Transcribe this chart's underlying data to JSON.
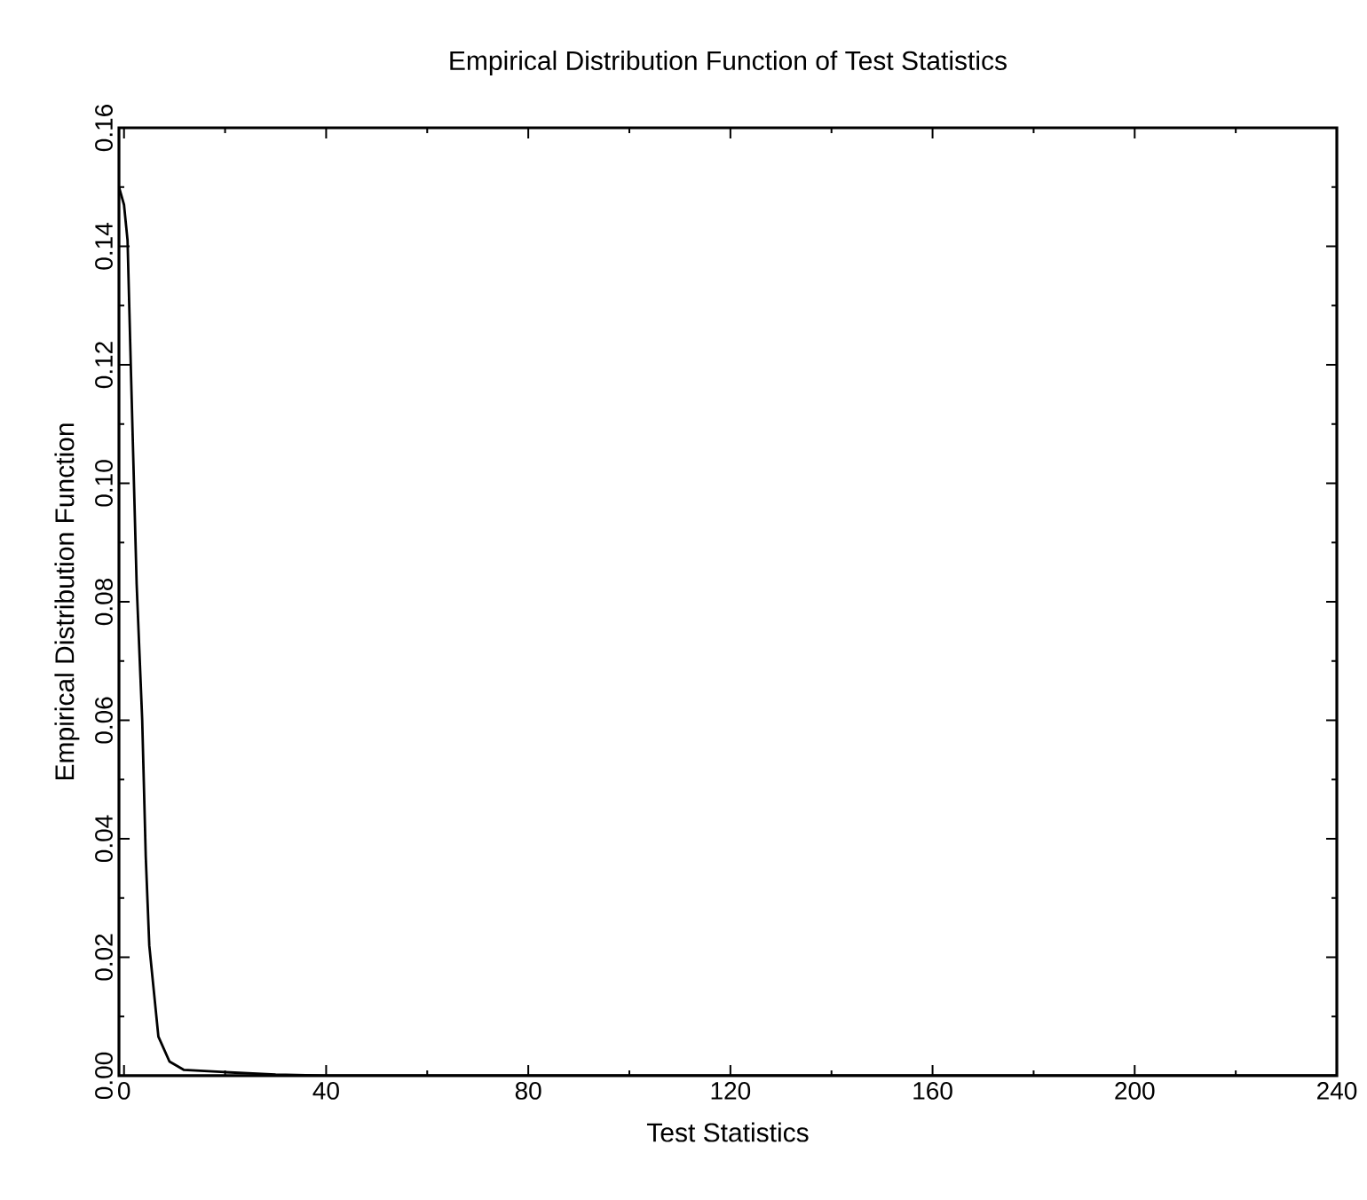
{
  "chart_data": {
    "type": "line",
    "title": "Empirical Distribution Function of Test Statistics",
    "xlabel": "Test Statistics",
    "ylabel": "Empirical Distribution Function",
    "series": [
      {
        "color": "#000000",
        "x": [
          -1,
          0,
          0.7,
          1.4,
          2.5,
          3.6,
          4.3,
          5,
          6.8,
          9,
          11.8,
          20,
          30,
          40,
          80,
          120,
          160,
          200,
          240
        ],
        "values": [
          0.15,
          0.147,
          0.141,
          0.118,
          0.083,
          0.06,
          0.037,
          0.022,
          0.0066,
          0.0024,
          0.001,
          0.0006,
          0.0002,
          0,
          0,
          0,
          0,
          0,
          0
        ]
      }
    ],
    "xlim": [
      -1,
      240
    ],
    "ylim": [
      0,
      0.16
    ],
    "xticks": [
      0,
      40,
      80,
      120,
      160,
      200,
      240
    ],
    "yticks": [
      {
        "value": 0,
        "label": "0.00"
      },
      {
        "value": 0.02,
        "label": "0.02"
      },
      {
        "value": 0.04,
        "label": "0.04"
      },
      {
        "value": 0.06,
        "label": "0.06"
      },
      {
        "value": 0.08,
        "label": "0.08"
      },
      {
        "value": 0.1,
        "label": "0.10"
      },
      {
        "value": 0.12,
        "label": "0.12"
      },
      {
        "value": 0.14,
        "label": "0.14"
      },
      {
        "value": 0.16,
        "label": "0.16"
      }
    ],
    "marker": "none",
    "line_style": "solid"
  }
}
